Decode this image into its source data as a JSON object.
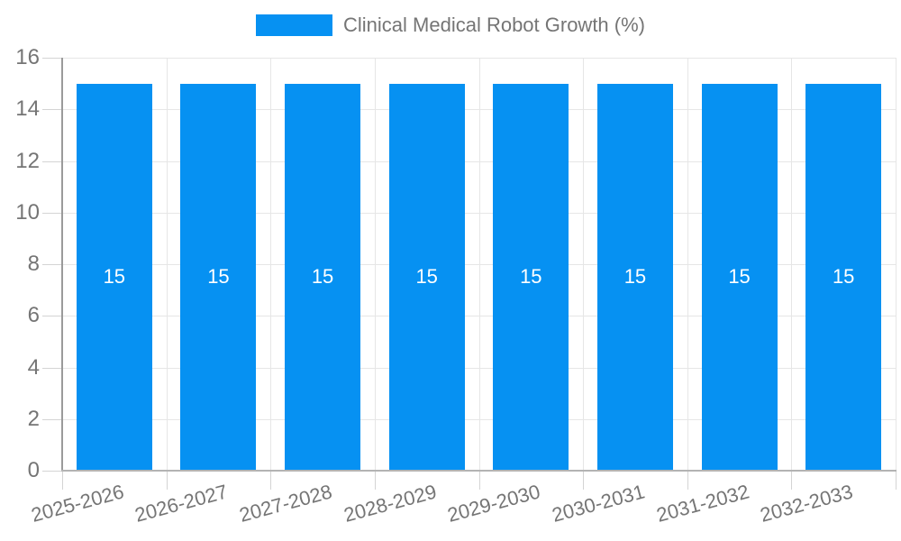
{
  "legend": {
    "items": [
      {
        "label": "Clinical Medical Robot Growth (%)",
        "color": "#0691f2"
      }
    ]
  },
  "chart_data": {
    "type": "bar",
    "title": "Clinical Medical Robot Growth (%)",
    "categories": [
      "2025-2026",
      "2026-2027",
      "2027-2028",
      "2028-2029",
      "2029-2030",
      "2030-2031",
      "2031-2032",
      "2032-2033"
    ],
    "values": [
      15,
      15,
      15,
      15,
      15,
      15,
      15,
      15
    ],
    "bar_value_labels": [
      "15",
      "15",
      "15",
      "15",
      "15",
      "15",
      "15",
      "15"
    ],
    "xlabel": "",
    "ylabel": "",
    "ylim": [
      0,
      16
    ],
    "yticks": [
      0,
      2,
      4,
      6,
      8,
      10,
      12,
      14,
      16
    ],
    "grid": true,
    "legend_position": "top-center",
    "x_tick_label_rotation_deg": -15,
    "colors": {
      "bar": "#0691f2",
      "bar_label": "#ffffff",
      "grid": "#e6e6e6",
      "tick": "#d4d4d4",
      "y_axis_line": "#9a9a9a",
      "x_axis_line": "#b3b3b3",
      "text": "#757575"
    }
  }
}
